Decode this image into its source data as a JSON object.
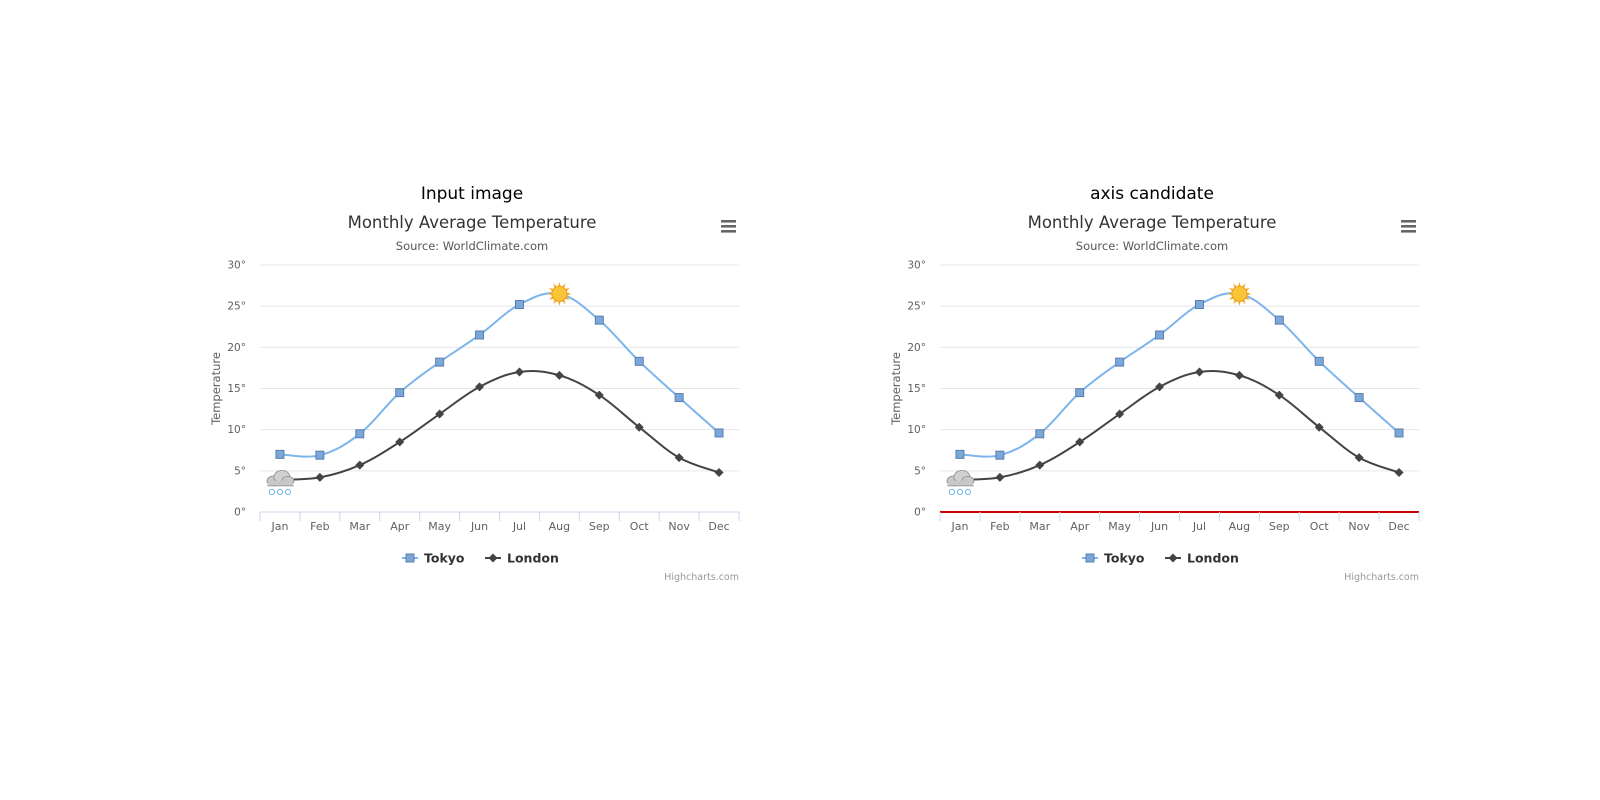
{
  "panels": [
    {
      "caption": "Input image",
      "highlight_axis": false
    },
    {
      "caption": "axis candidate",
      "highlight_axis": true
    }
  ],
  "credits": "Highcharts.com",
  "chart_data": {
    "type": "line",
    "title": "Monthly Average Temperature",
    "subtitle": "Source: WorldClimate.com",
    "xlabel": "",
    "ylabel": "Temperature",
    "categories": [
      "Jan",
      "Feb",
      "Mar",
      "Apr",
      "May",
      "Jun",
      "Jul",
      "Aug",
      "Sep",
      "Oct",
      "Nov",
      "Dec"
    ],
    "yticks": [
      "0°",
      "5°",
      "10°",
      "15°",
      "20°",
      "25°",
      "30°"
    ],
    "ylim": [
      0,
      30
    ],
    "grid": true,
    "legend_position": "bottom-center",
    "series": [
      {
        "name": "Tokyo",
        "marker": "square",
        "color": "#7cb5ec",
        "marker_color": "#7ba7d8",
        "values": [
          7.0,
          6.9,
          9.5,
          14.5,
          18.2,
          21.5,
          25.2,
          26.5,
          23.3,
          18.3,
          13.9,
          9.6
        ],
        "special_marker": {
          "index": 7,
          "icon": "sun-icon"
        }
      },
      {
        "name": "London",
        "marker": "diamond",
        "color": "#434348",
        "marker_color": "#434348",
        "values": [
          3.9,
          4.2,
          5.7,
          8.5,
          11.9,
          15.2,
          17.0,
          16.6,
          14.2,
          10.3,
          6.6,
          4.8
        ],
        "special_marker": {
          "index": 0,
          "icon": "snow-cloud-icon"
        }
      }
    ],
    "axis_highlight_color": "#cc0000"
  }
}
